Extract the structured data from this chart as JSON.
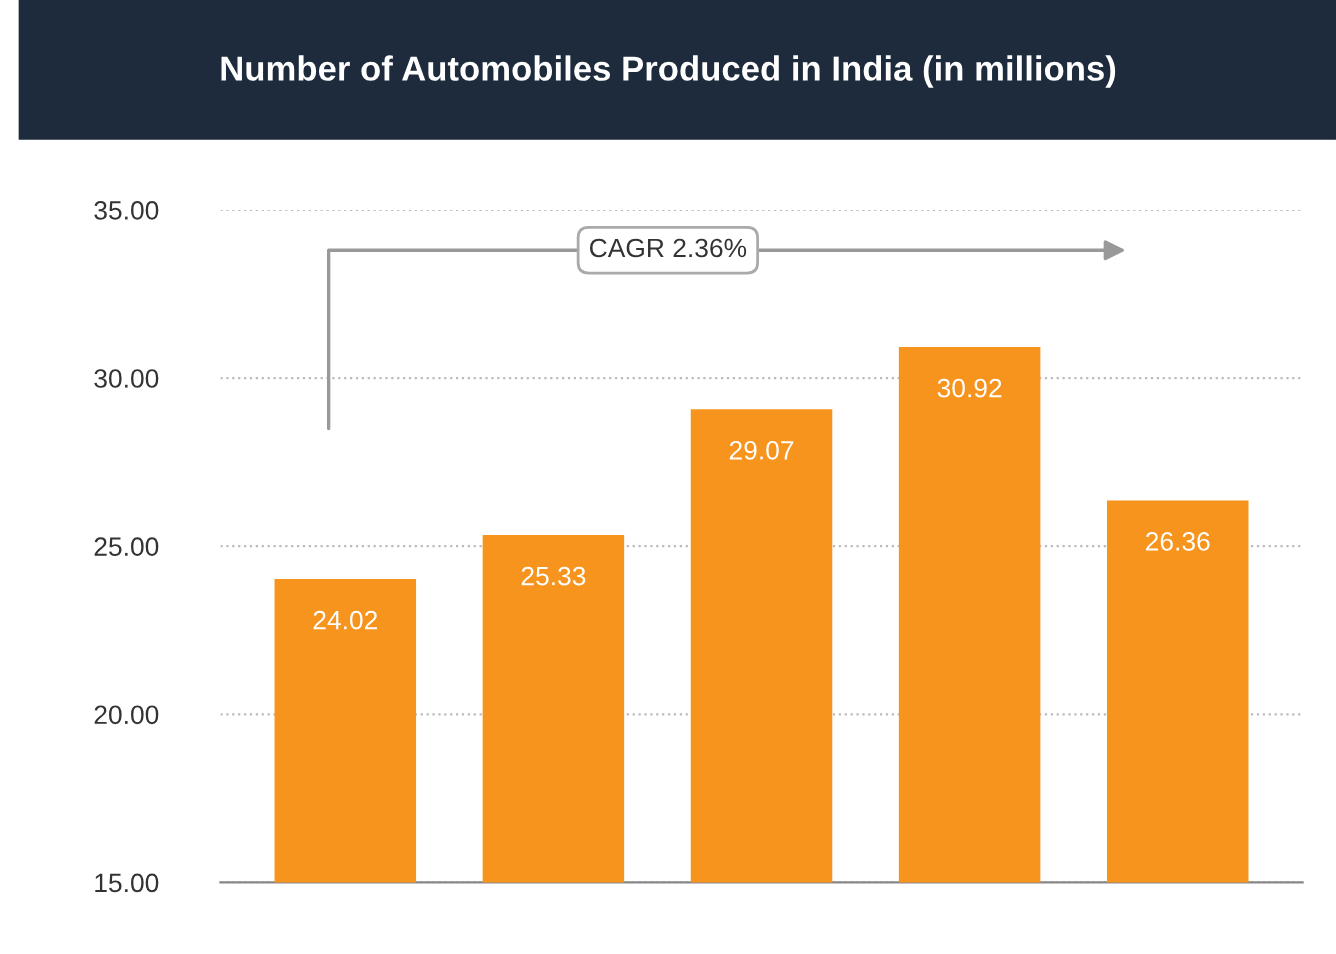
{
  "chart_data": {
    "type": "bar",
    "title": "Number of Automobiles Produced in India (in millions)",
    "categories": [
      null,
      null,
      null,
      null,
      null
    ],
    "values": [
      24.02,
      25.33,
      29.07,
      30.92,
      26.36
    ],
    "color": "#f7941d",
    "ylim": [
      15,
      35
    ],
    "yticks": [
      {
        "value": 15,
        "label": "15.00"
      },
      {
        "value": 20,
        "label": "20.00"
      },
      {
        "value": 25,
        "label": "25.00"
      },
      {
        "value": 30,
        "label": "30.00"
      },
      {
        "value": 35,
        "label": "35.00"
      }
    ],
    "grid": "y",
    "data_labels": true,
    "annotations": [
      "CAGR 2.36%"
    ]
  }
}
